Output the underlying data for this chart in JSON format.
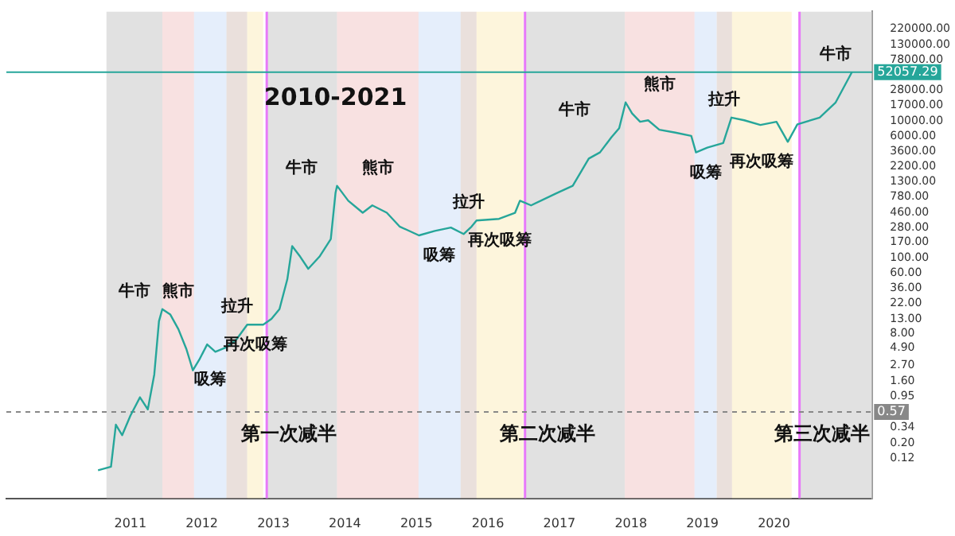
{
  "chart_data": {
    "type": "line",
    "title": "2010-2021",
    "x": [
      "2010-07-20",
      "2010-09-24",
      "2010-10-19",
      "2010-11-20",
      "2011-01-01",
      "2011-02-19",
      "2011-03-31",
      "2011-05-03",
      "2011-05-27",
      "2011-06-13",
      "2011-07-24",
      "2011-09-03",
      "2011-10-14",
      "2011-11-16",
      "2011-12-19",
      "2012-01-28",
      "2012-03-10",
      "2012-05-06",
      "2012-06-24",
      "2012-08-20",
      "2012-10-01",
      "2012-11-10",
      "2012-12-22",
      "2013-02-01",
      "2013-03-13",
      "2013-04-07",
      "2013-05-18",
      "2013-06-28",
      "2013-08-24",
      "2013-10-21",
      "2013-11-14",
      "2013-11-22",
      "2014-01-18",
      "2014-04-02",
      "2014-05-21",
      "2014-08-03",
      "2014-10-07",
      "2015-01-14",
      "2015-04-05",
      "2015-06-26",
      "2015-08-30",
      "2015-10-10",
      "2015-11-04",
      "2016-02-27",
      "2016-05-19",
      "2016-06-13",
      "2016-08-09",
      "2016-12-18",
      "2017-03-10",
      "2017-05-31",
      "2017-07-27",
      "2017-09-23",
      "2017-11-02",
      "2017-12-05",
      "2018-01-07",
      "2018-02-17",
      "2018-03-30",
      "2018-05-26",
      "2018-08-16",
      "2018-11-05",
      "2018-11-29",
      "2019-01-26",
      "2019-04-17",
      "2019-05-29",
      "2019-08-03",
      "2019-10-24",
      "2020-01-14",
      "2020-02-24",
      "2020-03-12",
      "2020-04-30",
      "2020-08-22",
      "2020-11-12",
      "2021-02-03"
    ],
    "series": [
      {
        "color": "#26a69a",
        "values": [
          0.08,
          0.09,
          0.37,
          0.26,
          0.5,
          0.93,
          0.62,
          2.0,
          12,
          18,
          15,
          9.2,
          4.7,
          2.3,
          3.3,
          5.5,
          4.3,
          5.0,
          6.4,
          10.7,
          10.7,
          10.7,
          13,
          18,
          49,
          150,
          105,
          70,
          105,
          190,
          890,
          1140,
          690,
          460,
          590,
          460,
          290,
          215,
          250,
          280,
          225,
          290,
          355,
          375,
          460,
          690,
          590,
          890,
          1140,
          2850,
          3500,
          5800,
          7900,
          18800,
          13000,
          9800,
          10300,
          7500,
          6800,
          6100,
          3500,
          4100,
          4800,
          11300,
          10300,
          8800,
          9800,
          6100,
          5000,
          9000,
          11300,
          18800,
          52000
        ]
      }
    ],
    "log": "y",
    "legend": false,
    "grid": false,
    "xlim": [
      "2009-04-08",
      "2021-05-19"
    ],
    "xticks": [
      "2011",
      "2012",
      "2013",
      "2014",
      "2015",
      "2016",
      "2017",
      "2018",
      "2019",
      "2020"
    ],
    "ylim": [
      0.031,
      400000
    ],
    "yticks": [
      {
        "value": 0.12,
        "label": "0.12"
      },
      {
        "value": 0.2,
        "label": "0.20"
      },
      {
        "value": 0.34,
        "label": "0.34"
      },
      {
        "value": 0.95,
        "label": "0.95"
      },
      {
        "value": 1.6,
        "label": "1.60"
      },
      {
        "value": 2.7,
        "label": "2.70"
      },
      {
        "value": 4.9,
        "label": "4.90"
      },
      {
        "value": 8,
        "label": "8.00"
      },
      {
        "value": 13,
        "label": "13.00"
      },
      {
        "value": 22,
        "label": "22.00"
      },
      {
        "value": 36,
        "label": "36.00"
      },
      {
        "value": 60,
        "label": "60.00"
      },
      {
        "value": 100,
        "label": "100.00"
      },
      {
        "value": 170,
        "label": "170.00"
      },
      {
        "value": 280,
        "label": "280.00"
      },
      {
        "value": 460,
        "label": "460.00"
      },
      {
        "value": 780,
        "label": "780.00"
      },
      {
        "value": 1300,
        "label": "1300.00"
      },
      {
        "value": 2200,
        "label": "2200.00"
      },
      {
        "value": 3600,
        "label": "3600.00"
      },
      {
        "value": 6000,
        "label": "6000.00"
      },
      {
        "value": 10000,
        "label": "10000.00"
      },
      {
        "value": 17000,
        "label": "17000.00"
      },
      {
        "value": 28000,
        "label": "28000.00"
      },
      {
        "value": 78000,
        "label": "78000.00"
      },
      {
        "value": 130000,
        "label": "130000.00"
      },
      {
        "value": 220000,
        "label": "220000.00"
      }
    ],
    "ref_lines": [
      {
        "axis": "x",
        "value": "2012-11-28",
        "label": "第一次减半",
        "color": "#e879f9",
        "line_style": "solid"
      },
      {
        "axis": "x",
        "value": "2016-07-09",
        "label": "第二次减半",
        "color": "#e879f9",
        "line_style": "solid"
      },
      {
        "axis": "x",
        "value": "2020-05-11",
        "label": "第三次减半",
        "color": "#e879f9",
        "line_style": "solid"
      },
      {
        "axis": "y",
        "value": 52057.29,
        "label": "52057.29",
        "color": "#26a69a",
        "line_style": "solid"
      },
      {
        "axis": "y",
        "value": 0.57,
        "label": "0.57",
        "color": "#888888",
        "line_style": "dashed"
      }
    ],
    "bands": [
      {
        "axis": "x",
        "from": "2010-09-01",
        "to": "2011-06-13",
        "label": "牛市",
        "color": "#c8c8c8"
      },
      {
        "axis": "x",
        "from": "2011-06-13",
        "to": "2011-11-22",
        "label": "熊市",
        "color": "#f3c9c9"
      },
      {
        "axis": "x",
        "from": "2011-11-22",
        "to": "2012-05-06",
        "label": "吸筹",
        "color": "#cfe0f7"
      },
      {
        "axis": "x",
        "from": "2012-05-06",
        "to": "2012-08-20",
        "label": "拉升",
        "color": "#d9c6c0"
      },
      {
        "axis": "x",
        "from": "2012-08-20",
        "to": "2012-11-10",
        "label": "再次吸筹",
        "color": "#fbecc0"
      },
      {
        "axis": "x",
        "from": "2012-11-28",
        "to": "2013-11-22",
        "label": "牛市",
        "color": "#c8c8c8"
      },
      {
        "axis": "x",
        "from": "2013-11-22",
        "to": "2015-01-12",
        "label": "熊市",
        "color": "#f3c9c9"
      },
      {
        "axis": "x",
        "from": "2015-01-12",
        "to": "2015-08-15",
        "label": "吸筹",
        "color": "#cfe0f7"
      },
      {
        "axis": "x",
        "from": "2015-08-15",
        "to": "2015-11-04",
        "label": "拉升",
        "color": "#d9c6c0"
      },
      {
        "axis": "x",
        "from": "2015-11-04",
        "to": "2016-07-01",
        "label": "再次吸筹",
        "color": "#fbecc0"
      },
      {
        "axis": "x",
        "from": "2016-07-09",
        "to": "2017-12-01",
        "label": "牛市",
        "color": "#c8c8c8"
      },
      {
        "axis": "x",
        "from": "2017-12-01",
        "to": "2018-11-22",
        "label": "熊市",
        "color": "#f3c9c9"
      },
      {
        "axis": "x",
        "from": "2018-11-22",
        "to": "2019-03-15",
        "label": "吸筹",
        "color": "#cfe0f7"
      },
      {
        "axis": "x",
        "from": "2019-03-15",
        "to": "2019-06-01",
        "label": "拉升",
        "color": "#d9c6c0"
      },
      {
        "axis": "x",
        "from": "2019-06-01",
        "to": "2020-04-01",
        "label": "再次吸筹",
        "color": "#fbecc0"
      },
      {
        "axis": "x",
        "from": "2020-05-11",
        "to": "2021-05-19",
        "label": "牛市",
        "color": "#c8c8c8"
      }
    ]
  }
}
